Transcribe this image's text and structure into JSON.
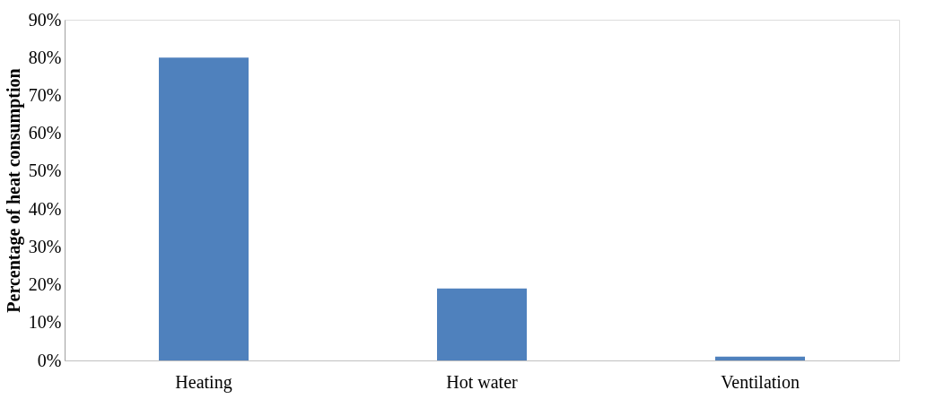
{
  "chart_data": {
    "type": "bar",
    "ylabel": "Percentage of heat consumption",
    "categories": [
      "Heating",
      "Hot water",
      "Ventilation"
    ],
    "series": [
      {
        "color": "#4f81bd",
        "values": [
          80,
          19,
          1
        ]
      }
    ],
    "ylim": [
      0,
      90
    ],
    "yticks": [
      {
        "value": 0,
        "label": "0%"
      },
      {
        "value": 10,
        "label": "10%"
      },
      {
        "value": 20,
        "label": "20%"
      },
      {
        "value": 30,
        "label": "30%"
      },
      {
        "value": 40,
        "label": "40%"
      },
      {
        "value": 50,
        "label": "50%"
      },
      {
        "value": 60,
        "label": "60%"
      },
      {
        "value": 70,
        "label": "70%"
      },
      {
        "value": 80,
        "label": "80%"
      },
      {
        "value": 90,
        "label": "90%"
      }
    ],
    "grid": false,
    "legend": false
  }
}
